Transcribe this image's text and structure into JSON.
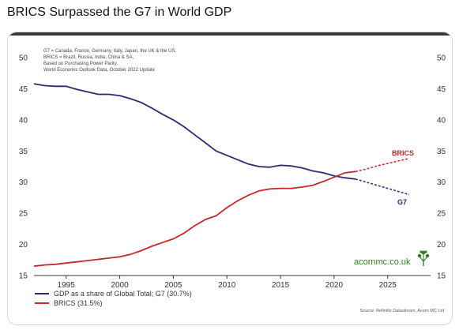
{
  "post": {
    "title": "BRICS Surpassed the G7 in World GDP"
  },
  "chart_data": {
    "type": "line",
    "title": "",
    "notes": [
      "G7 = Canada, France, Germany, Italy, Japan, the UK & the US,",
      "BRICS = Brazil, Russia, India, China & SA,",
      "Based on Purchasing Power Parity,",
      "World Economic Outlook Data, October 2022 Update"
    ],
    "xlim": [
      1992,
      2029
    ],
    "ylim": [
      15,
      50
    ],
    "x_ticks": [
      1995,
      2000,
      2005,
      2010,
      2015,
      2020,
      2025
    ],
    "y_ticks": [
      15,
      20,
      25,
      30,
      35,
      40,
      45,
      50
    ],
    "forecast_from": 2022,
    "series": [
      {
        "name": "GDP as a share of Global Total; G7 (30.7%)",
        "end_label": "G7",
        "color": "#2b2a7a",
        "x": [
          1992,
          1993,
          1994,
          1995,
          1996,
          1997,
          1998,
          1999,
          2000,
          2001,
          2002,
          2003,
          2004,
          2005,
          2006,
          2007,
          2008,
          2009,
          2010,
          2011,
          2012,
          2013,
          2014,
          2015,
          2016,
          2017,
          2018,
          2019,
          2020,
          2021,
          2022,
          2023,
          2024,
          2025,
          2026,
          2027
        ],
        "values": [
          45.8,
          45.5,
          45.4,
          45.4,
          44.9,
          44.5,
          44.1,
          44.1,
          43.9,
          43.4,
          42.8,
          41.9,
          40.9,
          40.0,
          38.9,
          37.6,
          36.3,
          35.0,
          34.3,
          33.6,
          32.9,
          32.5,
          32.4,
          32.7,
          32.6,
          32.3,
          31.8,
          31.5,
          31.0,
          30.7,
          30.5,
          30.0,
          29.5,
          29.0,
          28.5,
          28.0
        ]
      },
      {
        "name": "BRICS (31.5%)",
        "end_label": "BRICS",
        "color": "#c62828",
        "x": [
          1992,
          1993,
          1994,
          1995,
          1996,
          1997,
          1998,
          1999,
          2000,
          2001,
          2002,
          2003,
          2004,
          2005,
          2006,
          2007,
          2008,
          2009,
          2010,
          2011,
          2012,
          2013,
          2014,
          2015,
          2016,
          2017,
          2018,
          2019,
          2020,
          2021,
          2022,
          2023,
          2024,
          2025,
          2026,
          2027
        ],
        "values": [
          16.5,
          16.7,
          16.8,
          17.0,
          17.2,
          17.4,
          17.6,
          17.8,
          18.0,
          18.4,
          19.0,
          19.7,
          20.3,
          20.9,
          21.8,
          23.0,
          24.0,
          24.6,
          25.9,
          27.0,
          27.9,
          28.6,
          28.9,
          29.0,
          29.0,
          29.2,
          29.5,
          30.1,
          30.8,
          31.5,
          31.7,
          32.1,
          32.6,
          33.0,
          33.4,
          33.8
        ]
      }
    ],
    "branding": "acornmc.co.uk",
    "source": "Source: Refinitiv Datastream, Acorn MC Ltd"
  }
}
